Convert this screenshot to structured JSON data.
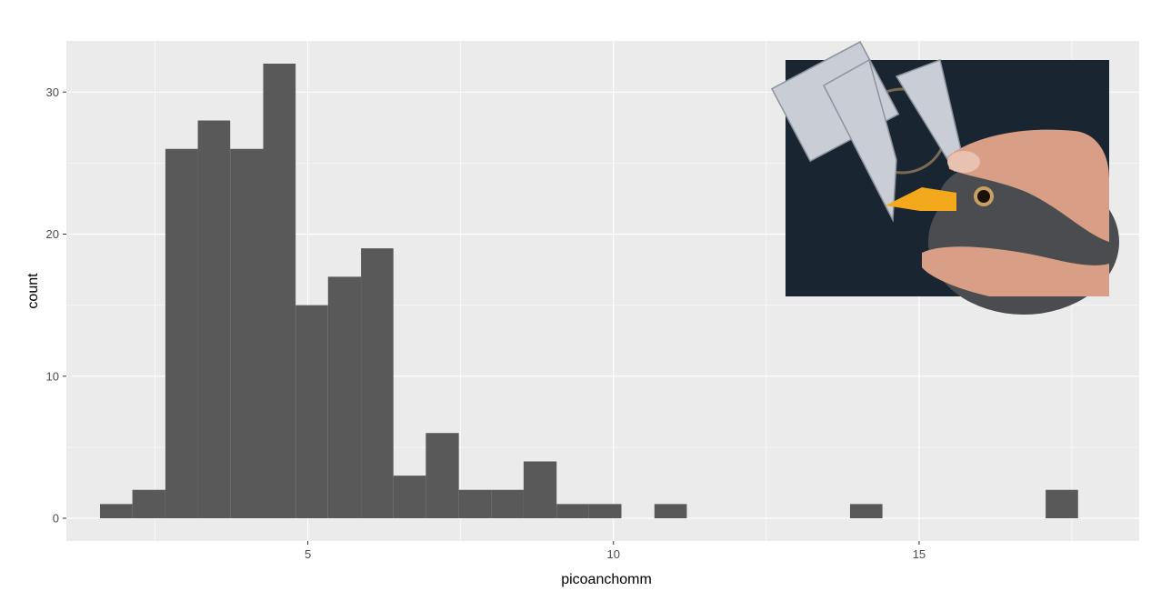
{
  "chart_data": {
    "type": "bar",
    "subtype": "histogram",
    "xlabel": "picoanchomm",
    "ylabel": "count",
    "xlim": [
      1.05,
      18.6
    ],
    "ylim": [
      -1.6,
      33.6
    ],
    "x_ticks": [
      5,
      10,
      15
    ],
    "y_ticks": [
      0,
      10,
      20,
      30
    ],
    "grid": true,
    "background": "#ebebeb",
    "bar_color": "#595959",
    "bins": [
      {
        "x0": 1.6,
        "x1": 2.13,
        "count": 1
      },
      {
        "x0": 2.13,
        "x1": 2.67,
        "count": 2
      },
      {
        "x0": 2.67,
        "x1": 3.2,
        "count": 26
      },
      {
        "x0": 3.2,
        "x1": 3.73,
        "count": 28
      },
      {
        "x0": 3.73,
        "x1": 4.27,
        "count": 26
      },
      {
        "x0": 4.27,
        "x1": 4.8,
        "count": 32
      },
      {
        "x0": 4.8,
        "x1": 5.33,
        "count": 15
      },
      {
        "x0": 5.33,
        "x1": 5.87,
        "count": 17
      },
      {
        "x0": 5.87,
        "x1": 6.4,
        "count": 19
      },
      {
        "x0": 6.4,
        "x1": 6.93,
        "count": 3
      },
      {
        "x0": 6.93,
        "x1": 7.47,
        "count": 6
      },
      {
        "x0": 7.47,
        "x1": 8.0,
        "count": 2
      },
      {
        "x0": 8.0,
        "x1": 8.53,
        "count": 2
      },
      {
        "x0": 8.53,
        "x1": 9.07,
        "count": 4
      },
      {
        "x0": 9.07,
        "x1": 9.6,
        "count": 1
      },
      {
        "x0": 9.6,
        "x1": 10.13,
        "count": 1
      },
      {
        "x0": 10.67,
        "x1": 11.2,
        "count": 1
      },
      {
        "x0": 13.87,
        "x1": 14.4,
        "count": 1
      },
      {
        "x0": 17.07,
        "x1": 17.6,
        "count": 2
      }
    ]
  },
  "inset_photo": {
    "subject": "caliper measuring a bird's beak",
    "colors": {
      "background": "#1c2a36",
      "caliper": "#c9ced6",
      "skin": "#d89f86",
      "bird": "#4a4c4f",
      "beak": "#f4a91c"
    }
  }
}
